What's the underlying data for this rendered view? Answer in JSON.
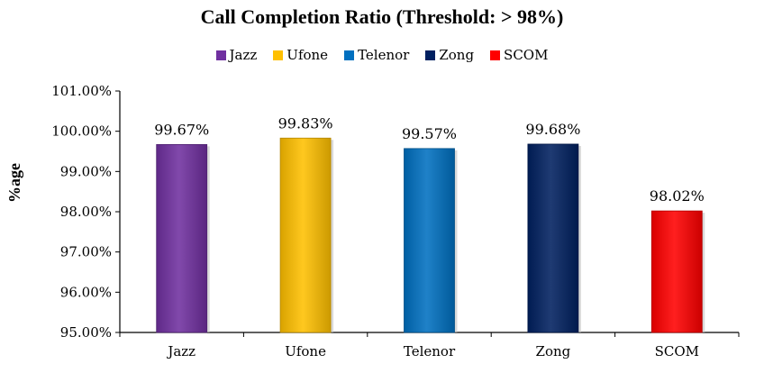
{
  "chart_data": {
    "type": "bar",
    "title": "Call Completion Ratio (Threshold: > 98%)",
    "ylabel": "%age",
    "xlabel": "",
    "categories": [
      "Jazz",
      "Ufone",
      "Telenor",
      "Zong",
      "SCOM"
    ],
    "values": [
      99.67,
      99.83,
      99.57,
      99.68,
      98.02
    ],
    "data_labels": [
      "99.67%",
      "99.83%",
      "99.57%",
      "99.68%",
      "98.02%"
    ],
    "ylim": [
      95,
      101
    ],
    "yticks": [
      95,
      96,
      97,
      98,
      99,
      100,
      101
    ],
    "ytick_labels": [
      "95.00%",
      "96.00%",
      "97.00%",
      "98.00%",
      "99.00%",
      "100.00%",
      "101.00%"
    ],
    "grid": false,
    "legend_position": "top",
    "colors": [
      "#7030a0",
      "#ffc000",
      "#0070c0",
      "#002060",
      "#ff0000"
    ]
  }
}
